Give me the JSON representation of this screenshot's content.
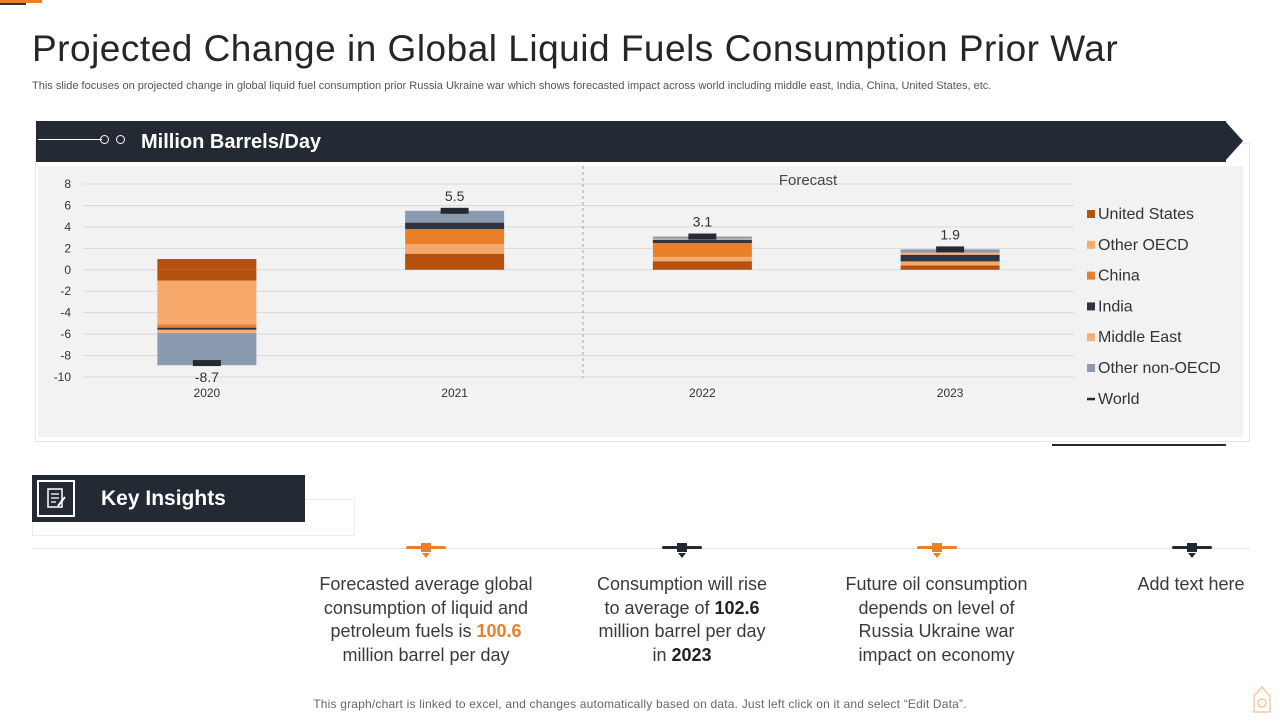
{
  "title": "Projected Change in Global Liquid Fuels Consumption Prior War",
  "subtitle": "This slide focuses on projected change in global liquid fuel consumption prior Russia Ukraine war which shows forecasted impact across world including middle east, India, China, United States, etc.",
  "chart_header": "Million  Barrels/Day",
  "chart_data": {
    "type": "bar",
    "stacked": true,
    "categories": [
      "2020",
      "2021",
      "2022",
      "2023"
    ],
    "ylim": [
      -10,
      8
    ],
    "yticks": [
      8,
      6,
      4,
      2,
      0,
      -2,
      -4,
      -6,
      -8,
      -10
    ],
    "grid": true,
    "legend_position": "right",
    "annotation": "Forecast",
    "series": [
      {
        "name": "United States",
        "color": "#b5500e",
        "values": [
          -1.0,
          1.5,
          0.8,
          0.4
        ]
      },
      {
        "name": "Other OECD",
        "color": "#f7a96b",
        "values": [
          -4.1,
          0.9,
          0.4,
          0.3
        ]
      },
      {
        "name": "China",
        "color": "#e8802a",
        "values": [
          -0.3,
          1.4,
          1.3,
          0.1
        ]
      },
      {
        "name": "India",
        "color": "#2e3440",
        "values": [
          -0.2,
          0.6,
          0.3,
          0.6
        ]
      },
      {
        "name": "Middle East",
        "color": "#f5b07a",
        "values": [
          -0.3,
          0.0,
          0.1,
          0.2
        ]
      },
      {
        "name": "Other non-OECD",
        "color": "#8a9bb0",
        "values": [
          -3.0,
          1.1,
          0.2,
          0.3
        ]
      }
    ],
    "positive_anchor": [
      1.0,
      0,
      0,
      0
    ],
    "world": {
      "name": "World",
      "values": [
        -8.7,
        5.5,
        3.1,
        1.9
      ],
      "labels": [
        "-8.7",
        "5.5",
        "3.1",
        "1.9"
      ]
    }
  },
  "key_insights": {
    "title": "Key Insights",
    "items": [
      {
        "pre": "Forecasted average global consumption of liquid and petroleum fuels is ",
        "highlight": "100.6",
        "post": " million barrel per day",
        "marker_color": "#e8802a"
      },
      {
        "pre": "Consumption will rise to average of ",
        "highlight": "102.6",
        "mid": " million barrel per day in ",
        "highlight2": "2023",
        "marker_color": "#232a33"
      },
      {
        "pre": "Future oil consumption depends on level of Russia Ukraine war impact on economy",
        "marker_color": "#e8802a"
      },
      {
        "pre": "Add text here",
        "marker_color": "#232a33"
      }
    ]
  },
  "footnote": "This graph/chart is linked to excel, and changes automatically based on data. Just left click on it and select “Edit Data”."
}
